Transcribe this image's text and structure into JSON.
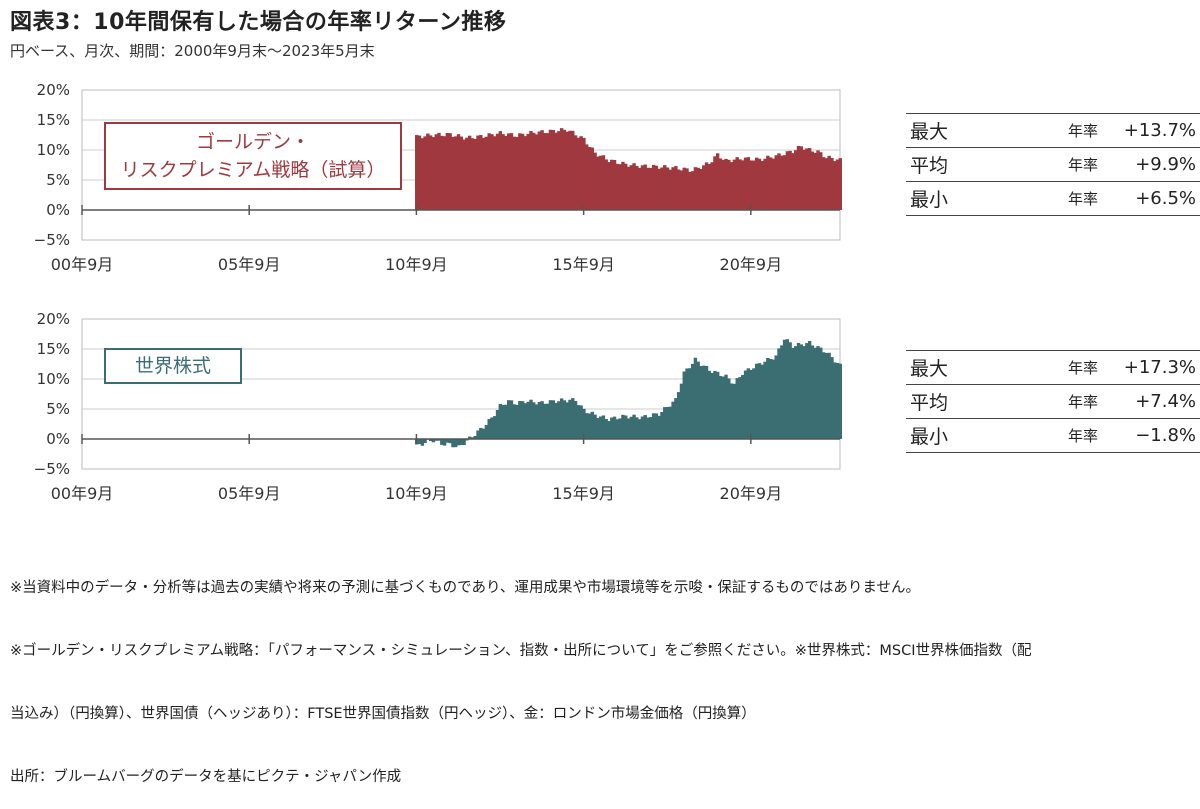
{
  "title": "図表3：10年間保有した場合の年率リターン推移",
  "subtitle": "円ベース、月次、期間：2000年9月末～2023年5月末",
  "x_ticks": [
    "00年9月",
    "05年9月",
    "10年9月",
    "15年9月",
    "20年9月"
  ],
  "y_ticks_top": [
    "20%",
    "15%",
    "10%",
    "5%",
    "0%",
    "−5%"
  ],
  "y_ticks_bottom": [
    "20%",
    "15%",
    "10%",
    "5%",
    "0%",
    "−5%"
  ],
  "colors": {
    "golden": "#a0393f",
    "world": "#3b6e73"
  },
  "chart_data": [
    {
      "type": "area",
      "series_label": [
        "ゴールデン・",
        "リスクプレミアム戦略（試算）"
      ],
      "ylim": [
        -5,
        20
      ],
      "x_range": [
        "2000-09",
        "2023-05"
      ],
      "points": [
        [
          "2010-09",
          12.2
        ],
        [
          "2011-03",
          12.5
        ],
        [
          "2011-09",
          12.6
        ],
        [
          "2012-03",
          12.0
        ],
        [
          "2012-09",
          12.3
        ],
        [
          "2013-03",
          12.8
        ],
        [
          "2013-09",
          12.4
        ],
        [
          "2014-03",
          12.9
        ],
        [
          "2014-09",
          13.1
        ],
        [
          "2015-03",
          13.4
        ],
        [
          "2015-09",
          11.8
        ],
        [
          "2016-01",
          9.5
        ],
        [
          "2016-06",
          8.3
        ],
        [
          "2016-12",
          7.6
        ],
        [
          "2017-06",
          7.3
        ],
        [
          "2017-12",
          7.2
        ],
        [
          "2018-06",
          7.0
        ],
        [
          "2018-12",
          6.6
        ],
        [
          "2019-06",
          7.8
        ],
        [
          "2019-09",
          9.2
        ],
        [
          "2019-12",
          8.2
        ],
        [
          "2020-06",
          8.6
        ],
        [
          "2020-12",
          8.4
        ],
        [
          "2021-06",
          9.0
        ],
        [
          "2021-12",
          9.8
        ],
        [
          "2022-03",
          10.6
        ],
        [
          "2022-06",
          10.0
        ],
        [
          "2022-09",
          9.7
        ],
        [
          "2022-12",
          8.8
        ],
        [
          "2023-05",
          8.3
        ]
      ],
      "stats": [
        {
          "label": "最大",
          "unit": "年率",
          "value": "+13.7%"
        },
        {
          "label": "平均",
          "unit": "年率",
          "value": "+9.9%"
        },
        {
          "label": "最小",
          "unit": "年率",
          "value": "+6.5%"
        }
      ]
    },
    {
      "type": "area",
      "series_label": [
        "世界株式"
      ],
      "ylim": [
        -5,
        20
      ],
      "x_range": [
        "2000-09",
        "2023-05"
      ],
      "points": [
        [
          "2010-09",
          -1.2
        ],
        [
          "2010-12",
          -0.6
        ],
        [
          "2011-03",
          -0.2
        ],
        [
          "2011-06",
          -0.8
        ],
        [
          "2011-09",
          -0.9
        ],
        [
          "2011-12",
          -1.4
        ],
        [
          "2012-03",
          -0.3
        ],
        [
          "2012-06",
          0.8
        ],
        [
          "2012-09",
          2.0
        ],
        [
          "2012-12",
          3.5
        ],
        [
          "2013-03",
          5.5
        ],
        [
          "2013-06",
          6.3
        ],
        [
          "2013-09",
          5.9
        ],
        [
          "2013-12",
          6.3
        ],
        [
          "2014-06",
          6.0
        ],
        [
          "2014-12",
          6.4
        ],
        [
          "2015-06",
          6.5
        ],
        [
          "2015-09",
          4.8
        ],
        [
          "2016-01",
          4.0
        ],
        [
          "2016-06",
          3.3
        ],
        [
          "2016-12",
          3.8
        ],
        [
          "2017-06",
          3.6
        ],
        [
          "2017-12",
          4.2
        ],
        [
          "2018-06",
          6.5
        ],
        [
          "2018-09",
          11.0
        ],
        [
          "2019-01",
          13.2
        ],
        [
          "2019-06",
          11.5
        ],
        [
          "2019-12",
          10.4
        ],
        [
          "2020-03",
          9.2
        ],
        [
          "2020-06",
          11.0
        ],
        [
          "2020-12",
          12.5
        ],
        [
          "2021-06",
          13.8
        ],
        [
          "2021-09",
          16.8
        ],
        [
          "2021-12",
          15.5
        ],
        [
          "2022-06",
          16.0
        ],
        [
          "2022-12",
          14.5
        ],
        [
          "2023-05",
          12.2
        ]
      ],
      "stats": [
        {
          "label": "最大",
          "unit": "年率",
          "value": "+17.3%"
        },
        {
          "label": "平均",
          "unit": "年率",
          "value": "+7.4%"
        },
        {
          "label": "最小",
          "unit": "年率",
          "value": "−1.8%"
        }
      ]
    }
  ],
  "notes": [
    "※当資料中のデータ・分析等は過去の実績や将来の予測に基づくものであり、運用成果や市場環境等を示唆・保証するものではありません。",
    "※ゴールデン・リスクプレミアム戦略：「パフォーマンス・シミュレーション、指数・出所について」をご参照ください。※世界株式：MSCI世界株価指数（配",
    "当込み）（円換算）、世界国債（ヘッジあり）：FTSE世界国債指数（円ヘッジ）、金：ロンドン市場金価格（円換算）",
    "出所：ブルームバーグのデータを基にピクテ・ジャパン作成"
  ]
}
